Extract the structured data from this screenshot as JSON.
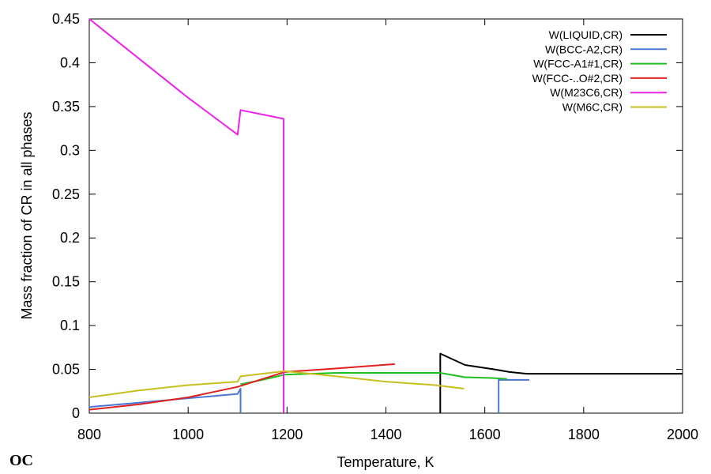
{
  "chart_data": {
    "type": "line",
    "title": "",
    "xlabel": "Temperature, K",
    "ylabel": "Mass fraction of CR in all phases",
    "xlim": [
      800,
      2000
    ],
    "ylim": [
      0,
      0.45
    ],
    "x_ticks": [
      "800",
      "1000",
      "1200",
      "1400",
      "1600",
      "1800",
      "2000"
    ],
    "y_ticks": [
      "0",
      "0.05",
      "0.1",
      "0.15",
      "0.2",
      "0.25",
      "0.3",
      "0.35",
      "0.4",
      "0.45"
    ],
    "grid": false,
    "legend_position": "top-right",
    "logo_text": "OC",
    "series": [
      {
        "name": "W(LIQUID,CR)",
        "color": "#000000",
        "points": [
          [
            1510,
            0.0
          ],
          [
            1510,
            0.068
          ],
          [
            1560,
            0.055
          ],
          [
            1620,
            0.05
          ],
          [
            1650,
            0.047
          ],
          [
            1685,
            0.045
          ],
          [
            2000,
            0.045
          ]
        ]
      },
      {
        "name": "W(BCC-A2,CR)",
        "color": "#4a76d6",
        "points": [
          [
            800,
            0.007
          ],
          [
            900,
            0.012
          ],
          [
            1000,
            0.017
          ],
          [
            1100,
            0.022
          ],
          [
            1106,
            0.028
          ],
          [
            1106,
            0.0
          ]
        ],
        "extra_segments": [
          [
            [
              1628,
              0.0
            ],
            [
              1628,
              0.038
            ],
            [
              1690,
              0.038
            ]
          ]
        ]
      },
      {
        "name": "W(FCC-A1#1,CR)",
        "color": "#1fbf1f",
        "points": [
          [
            1106,
            0.033
          ],
          [
            1150,
            0.038
          ],
          [
            1195,
            0.044
          ],
          [
            1300,
            0.046
          ],
          [
            1400,
            0.046
          ],
          [
            1510,
            0.046
          ],
          [
            1560,
            0.041
          ],
          [
            1620,
            0.04
          ],
          [
            1645,
            0.039
          ]
        ]
      },
      {
        "name": "W(FCC-..O#2,CR)",
        "color": "#e0201f",
        "points": [
          [
            800,
            0.004
          ],
          [
            900,
            0.01
          ],
          [
            1000,
            0.018
          ],
          [
            1100,
            0.03
          ],
          [
            1195,
            0.047
          ],
          [
            1300,
            0.051
          ],
          [
            1418,
            0.056
          ]
        ]
      },
      {
        "name": "W(M23C6,CR)",
        "color": "#ee20ee",
        "points": [
          [
            800,
            0.45
          ],
          [
            1000,
            0.36
          ],
          [
            1100,
            0.318
          ],
          [
            1106,
            0.346
          ],
          [
            1193,
            0.336
          ],
          [
            1193,
            0.0
          ]
        ]
      },
      {
        "name": "W(M6C,CR)",
        "color": "#c8bf1f",
        "points": [
          [
            800,
            0.018
          ],
          [
            900,
            0.026
          ],
          [
            1000,
            0.032
          ],
          [
            1100,
            0.036
          ],
          [
            1106,
            0.042
          ],
          [
            1150,
            0.045
          ],
          [
            1195,
            0.048
          ],
          [
            1300,
            0.042
          ],
          [
            1400,
            0.036
          ],
          [
            1500,
            0.032
          ],
          [
            1558,
            0.028
          ]
        ]
      }
    ]
  }
}
